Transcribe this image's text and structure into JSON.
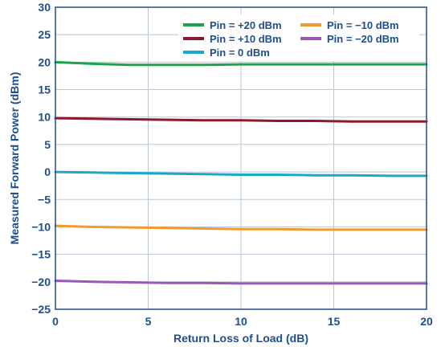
{
  "chart_data": {
    "type": "line",
    "title": "",
    "xlabel": "Return Loss of Load (dB)",
    "ylabel": "Measured Forward Power (dBm)",
    "xlim": [
      0,
      20
    ],
    "ylim": [
      -25,
      30
    ],
    "xticks": [
      0,
      5,
      10,
      15,
      20
    ],
    "yticks": [
      -25,
      -20,
      -15,
      -10,
      -5,
      0,
      5,
      10,
      15,
      20,
      25,
      30
    ],
    "grid": true,
    "legend_position": "top-right",
    "x": [
      0,
      2,
      4,
      6,
      8,
      10,
      12,
      14,
      16,
      18,
      20
    ],
    "series": [
      {
        "name": "Pin = +20 dBm",
        "color": "#1aa54a",
        "values": [
          20.0,
          19.7,
          19.5,
          19.5,
          19.5,
          19.6,
          19.6,
          19.6,
          19.6,
          19.6,
          19.6
        ]
      },
      {
        "name": "Pin = +10 dBm",
        "color": "#8b1a2f",
        "values": [
          9.8,
          9.7,
          9.6,
          9.5,
          9.4,
          9.4,
          9.3,
          9.3,
          9.2,
          9.2,
          9.2
        ]
      },
      {
        "name": "Pin = 0 dBm",
        "color": "#1aa7c9",
        "values": [
          0.0,
          -0.1,
          -0.2,
          -0.3,
          -0.4,
          -0.5,
          -0.5,
          -0.6,
          -0.6,
          -0.7,
          -0.7
        ]
      },
      {
        "name": "Pin = −10 dBm",
        "color": "#f39a2e",
        "values": [
          -9.8,
          -10.0,
          -10.1,
          -10.2,
          -10.3,
          -10.4,
          -10.4,
          -10.5,
          -10.5,
          -10.5,
          -10.5
        ]
      },
      {
        "name": "Pin = −20 dBm",
        "color": "#9b59b6",
        "values": [
          -19.8,
          -20.0,
          -20.1,
          -20.2,
          -20.2,
          -20.3,
          -20.3,
          -20.3,
          -20.3,
          -20.3,
          -20.3
        ]
      }
    ]
  }
}
